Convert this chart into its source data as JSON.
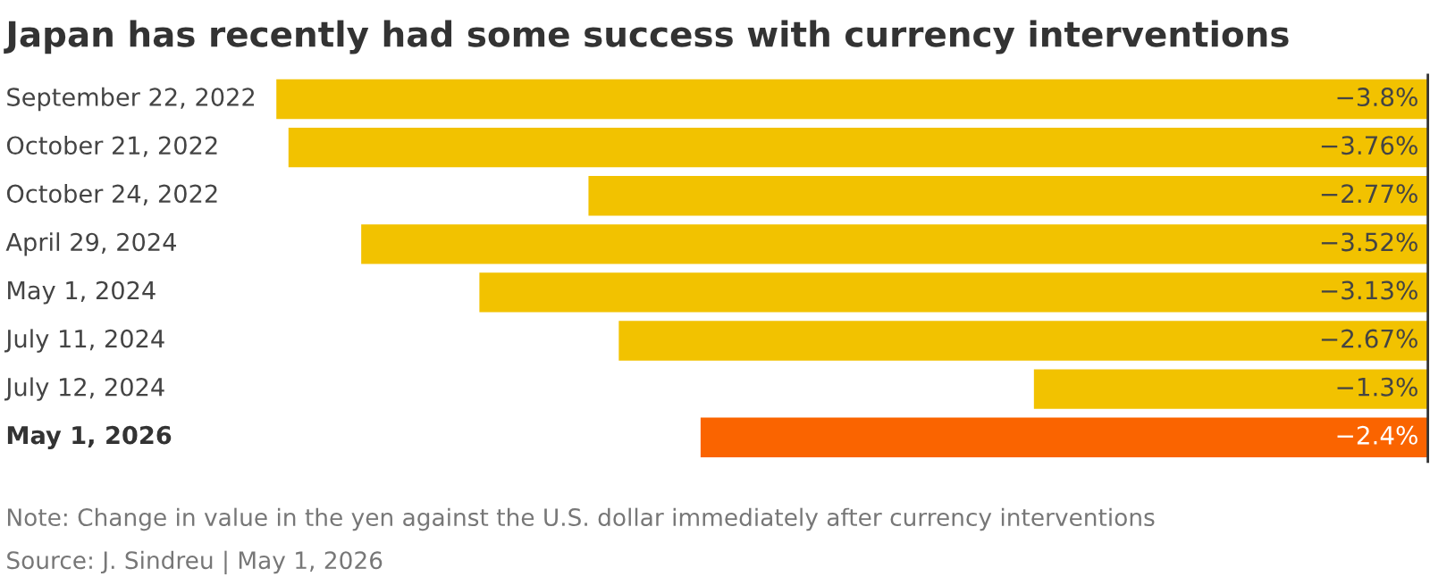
{
  "chart_data": {
    "type": "bar",
    "orientation": "horizontal",
    "title": "Japan has recently had some success with currency interventions",
    "categories": [
      "September 22, 2022",
      "October 21, 2022",
      "October 24, 2022",
      "April 29, 2024",
      "May 1, 2024",
      "July 11, 2024",
      "July 12, 2024",
      "May 1, 2026"
    ],
    "values": [
      -3.8,
      -3.76,
      -2.77,
      -3.52,
      -3.13,
      -2.67,
      -1.3,
      -2.4
    ],
    "colors": [
      "#f2c200",
      "#f2c200",
      "#f2c200",
      "#f2c200",
      "#f2c200",
      "#f2c200",
      "#f2c200",
      "#fa6400"
    ],
    "value_labels": [
      "−3.8%",
      "−3.76%",
      "−2.77%",
      "−3.52%",
      "−3.13%",
      "−2.67%",
      "−1.3%",
      "−2.4%"
    ],
    "annotations": [
      "Note: Change in value in the yen against the U.S. dollar immediately after currency interventions",
      "Source: J. Sindreu | May 1, 2026"
    ]
  }
}
